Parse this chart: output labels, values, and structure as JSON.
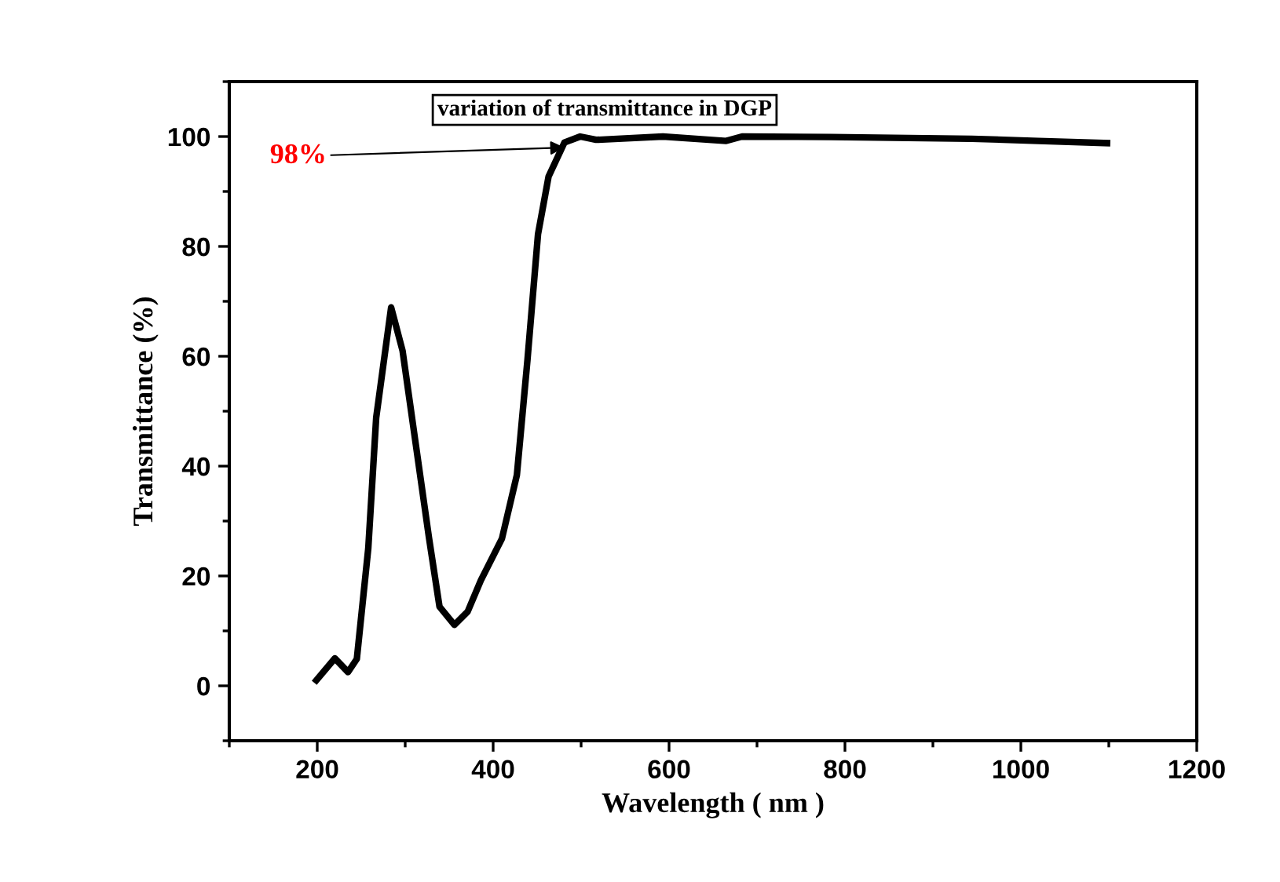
{
  "chart_data": {
    "type": "line",
    "xlabel": "Wavelength ( nm )",
    "ylabel": "Transmittance (%)",
    "x": [
      199,
      220,
      235,
      245,
      258,
      267,
      284,
      297,
      312,
      327,
      339,
      356,
      371,
      386,
      410,
      427,
      439,
      451,
      463,
      481,
      499,
      517,
      593,
      665,
      683,
      784,
      944,
      1020,
      1098
    ],
    "series": [
      {
        "color": "#000000",
        "values": [
          1,
          5,
          2.5,
          4.9,
          25,
          48.8,
          68.9,
          61,
          44,
          27,
          14.4,
          11.1,
          13.5,
          19.2,
          26.8,
          38.4,
          59.3,
          82.2,
          92.7,
          98.9,
          100,
          99.4,
          100,
          99.2,
          100,
          99.9,
          99.6,
          99.2,
          98.8
        ]
      }
    ],
    "xlim": [
      100,
      1200
    ],
    "ylim": [
      -10,
      110
    ],
    "xticks": [
      200,
      400,
      600,
      800,
      1000,
      1200
    ],
    "yticks": [
      0,
      20,
      40,
      60,
      80,
      100
    ],
    "grid": false,
    "legend": false,
    "marker": "none",
    "line_style": "solid",
    "annotations": [
      "variation of transmittance in DGP",
      {
        "text": "98%",
        "x": 481,
        "y": 98
      }
    ]
  }
}
